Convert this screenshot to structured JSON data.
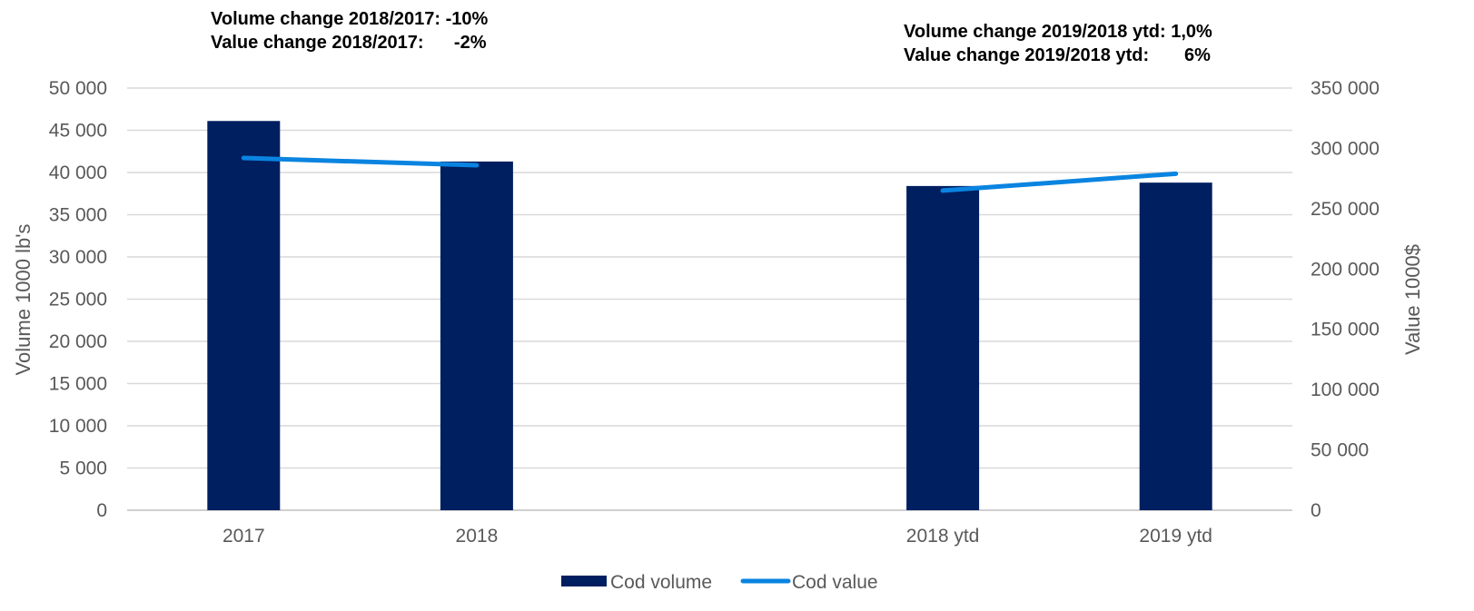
{
  "annotations": {
    "left_line1": "Volume change 2018/2017: -10%",
    "left_line2": "Value change 2018/2017:      -2%",
    "right_line1": "Volume change 2019/2018 ytd: 1,0%",
    "right_line2": "Value change 2019/2018 ytd:       6%"
  },
  "chart_data": {
    "type": "bar",
    "categories": [
      "2017",
      "2018",
      "",
      "2018 ytd",
      "2019 ytd"
    ],
    "series": [
      {
        "name": "Cod volume",
        "type": "bar",
        "axis": "left",
        "color": "#001f60",
        "values": [
          46100,
          41300,
          null,
          38400,
          38800
        ]
      },
      {
        "name": "Cod value",
        "type": "line",
        "axis": "right",
        "color": "#0a84e0",
        "segments": [
          [
            0,
            1
          ],
          [
            3,
            4
          ]
        ],
        "values": [
          292000,
          286000,
          null,
          265000,
          279000
        ]
      }
    ],
    "ylabel": "Volume 1000 lb's",
    "y2label": "Value 1000$",
    "ylim": [
      0,
      50000
    ],
    "y2lim": [
      0,
      350000
    ],
    "yticks": [
      "0",
      "5 000",
      "10 000",
      "15 000",
      "20 000",
      "25 000",
      "30 000",
      "35 000",
      "40 000",
      "45 000",
      "50 000"
    ],
    "y2ticks": [
      "0",
      "50 000",
      "100 000",
      "150 000",
      "200 000",
      "250 000",
      "300 000",
      "350 000"
    ],
    "grid": true,
    "legend": "bottom"
  }
}
